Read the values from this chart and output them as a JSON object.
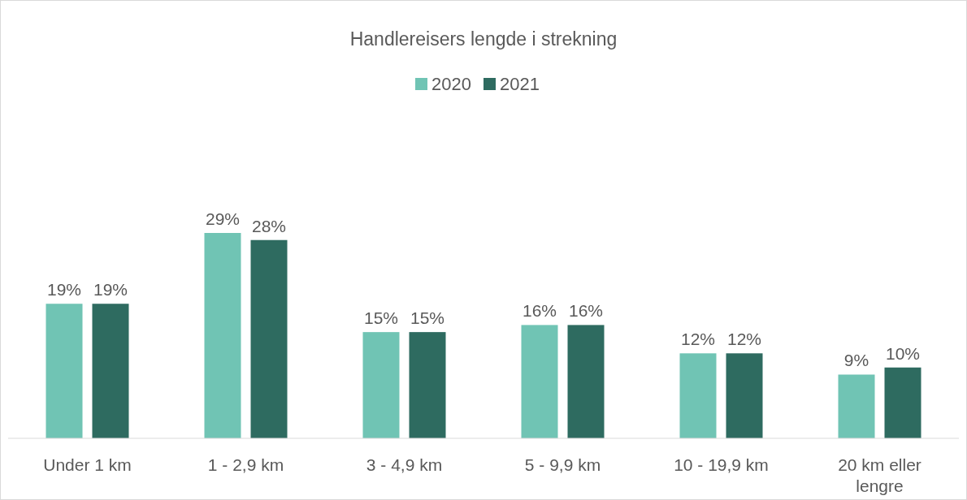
{
  "chart_data": {
    "type": "bar",
    "title": "Handlereisers lengde i strekning",
    "categories": [
      "Under 1 km",
      "1 - 2,9 km",
      "3 - 4,9 km",
      "5 - 9,9 km",
      "10 - 19,9 km",
      "20 km eller lengre"
    ],
    "series": [
      {
        "name": "2020",
        "color": "#70c4b4",
        "values": [
          19,
          29,
          15,
          16,
          12,
          9
        ],
        "value_labels": [
          "19%",
          "29%",
          "15%",
          "16%",
          "12%",
          "9%"
        ]
      },
      {
        "name": "2021",
        "color": "#2e6b60",
        "values": [
          19,
          28,
          15,
          16,
          12,
          10
        ],
        "value_labels": [
          "19%",
          "28%",
          "15%",
          "16%",
          "12%",
          "10%"
        ]
      }
    ],
    "legend": "top"
  }
}
